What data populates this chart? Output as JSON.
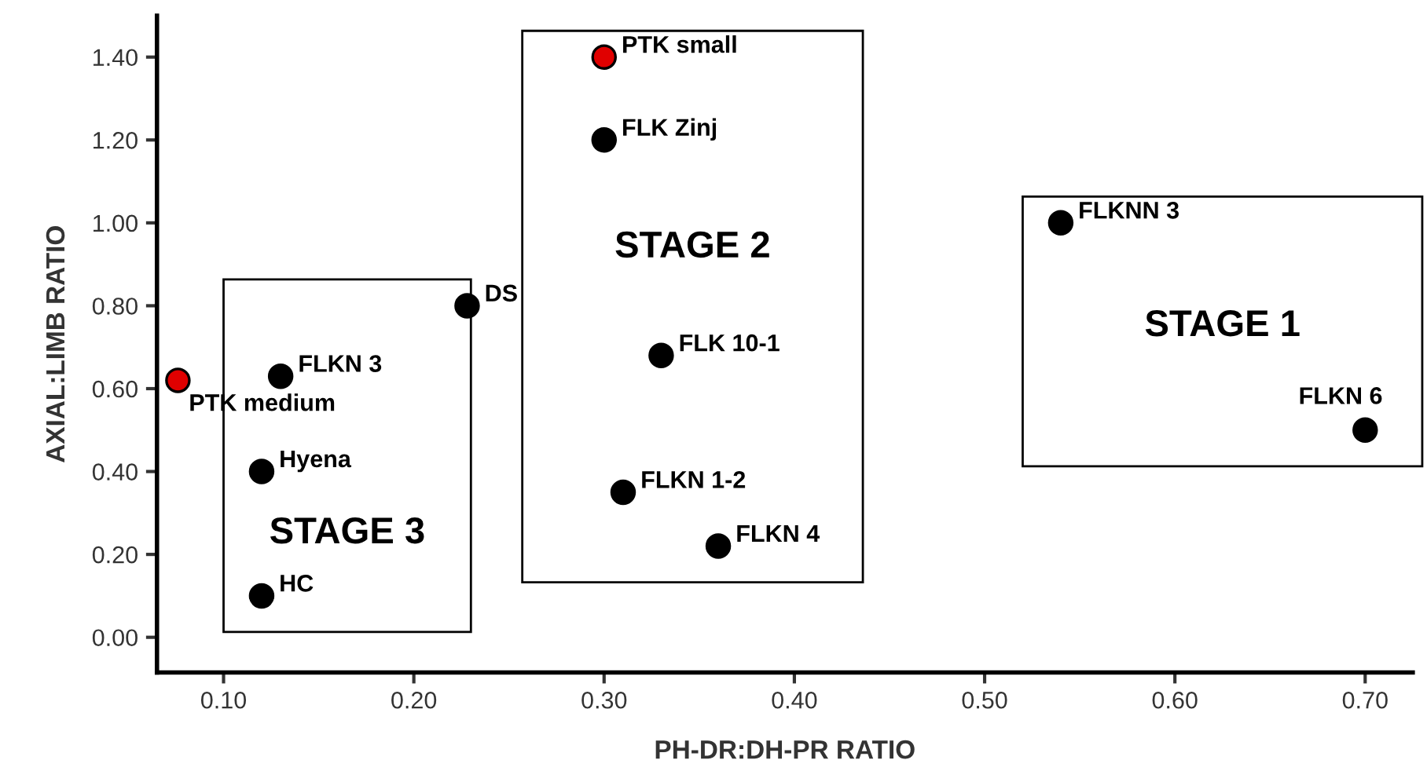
{
  "chart_data": {
    "type": "scatter",
    "xlabel": "PH-DR:DH-PR RATIO",
    "ylabel": "AXIAL:LIMB RATIO",
    "x": [
      0.3,
      0.3,
      0.54,
      0.228,
      0.33,
      0.13,
      0.076,
      0.7,
      0.12,
      0.31,
      0.36,
      0.12
    ],
    "values": [
      1.4,
      1.2,
      1.0,
      0.8,
      0.68,
      0.63,
      0.62,
      0.5,
      0.4,
      0.35,
      0.22,
      0.1
    ],
    "colors": [
      "#e00000",
      "#000000",
      "#000000",
      "#000000",
      "#000000",
      "#000000",
      "#e00000",
      "#000000",
      "#000000",
      "#000000",
      "#000000",
      "#000000"
    ],
    "marker": "circle",
    "grid": false,
    "legend": false,
    "xlim": [
      0.065,
      0.725
    ],
    "ylim": [
      -0.085,
      1.5
    ],
    "xticks": [
      {
        "value": 0.1,
        "label": "0.10"
      },
      {
        "value": 0.2,
        "label": "0.20"
      },
      {
        "value": 0.3,
        "label": "0.30"
      },
      {
        "value": 0.4,
        "label": "0.40"
      },
      {
        "value": 0.5,
        "label": "0.50"
      },
      {
        "value": 0.6,
        "label": "0.60"
      },
      {
        "value": 0.7,
        "label": "0.70"
      }
    ],
    "yticks": [
      {
        "value": 0,
        "label": "0.00"
      },
      {
        "value": 0.2,
        "label": "0.20"
      },
      {
        "value": 0.4,
        "label": "0.40"
      },
      {
        "value": 0.6,
        "label": "0.60"
      },
      {
        "value": 0.8,
        "label": "0.80"
      },
      {
        "value": 1.0,
        "label": "1.00"
      },
      {
        "value": 1.2,
        "label": "1.20"
      },
      {
        "value": 1.4,
        "label": "1.40"
      }
    ],
    "bands": [
      {
        "axis": "x",
        "from": 0.1,
        "to": 0.23,
        "label": "STAGE 3",
        "color": "#ffffff"
      },
      {
        "axis": "x",
        "from": 0.257,
        "to": 0.436,
        "label": "STAGE 2",
        "color": "#ffffff"
      },
      {
        "axis": "x",
        "from": 0.52,
        "to": 0.73,
        "label": "STAGE 1",
        "color": "#ffffff"
      }
    ],
    "annotations": [
      {
        "text": "PTK small",
        "x": 0.3,
        "y": 1.4
      },
      {
        "text": "FLK Zinj",
        "x": 0.3,
        "y": 1.2
      },
      {
        "text": "FLKNN 3",
        "x": 0.54,
        "y": 1.0
      },
      {
        "text": "DS",
        "x": 0.228,
        "y": 0.8
      },
      {
        "text": "FLK 10-1",
        "x": 0.33,
        "y": 0.68
      },
      {
        "text": "FLKN 3",
        "x": 0.13,
        "y": 0.63
      },
      {
        "text": "PTK medium",
        "x": 0.076,
        "y": 0.62
      },
      {
        "text": "FLKN 6",
        "x": 0.7,
        "y": 0.5
      },
      {
        "text": "Hyena",
        "x": 0.12,
        "y": 0.4
      },
      {
        "text": "FLKN 1-2",
        "x": 0.31,
        "y": 0.35
      },
      {
        "text": "FLKN 4",
        "x": 0.36,
        "y": 0.22
      },
      {
        "text": "HC",
        "x": 0.12,
        "y": 0.1
      }
    ]
  }
}
